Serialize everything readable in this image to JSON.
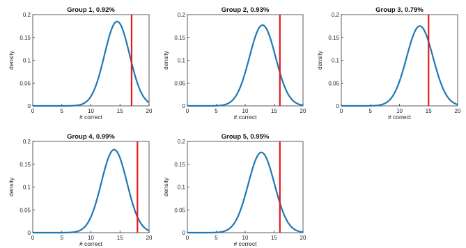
{
  "chart_data": [
    {
      "type": "line",
      "title": "Group 1, 0.92%",
      "xlabel": "# correct",
      "ylabel": "density",
      "xlim": [
        0,
        20
      ],
      "ylim": [
        0,
        0.2
      ],
      "xticks": [
        "0",
        "5",
        "10",
        "15",
        "20"
      ],
      "yticks": [
        "0",
        "0.05",
        "0.1",
        "0.15",
        "0.2"
      ],
      "series": [
        {
          "type": "normal-density",
          "mean": 14.5,
          "peak": 0.185,
          "color": "#1f77b4"
        }
      ],
      "vline": {
        "x": 17,
        "color": "#e41a1c"
      },
      "grid": false
    },
    {
      "type": "line",
      "title": "Group 2, 0.93%",
      "xlabel": "# correct",
      "ylabel": "density",
      "xlim": [
        0,
        20
      ],
      "ylim": [
        0,
        0.2
      ],
      "xticks": [
        "0",
        "5",
        "10",
        "15",
        "20"
      ],
      "yticks": [
        "0",
        "0.05",
        "0.1",
        "0.15",
        "0.2"
      ],
      "series": [
        {
          "type": "normal-density",
          "mean": 13.0,
          "peak": 0.177,
          "color": "#1f77b4"
        }
      ],
      "vline": {
        "x": 16,
        "color": "#e41a1c"
      },
      "grid": false
    },
    {
      "type": "line",
      "title": "Group 3, 0.79%",
      "xlabel": "# correct",
      "ylabel": "density",
      "xlim": [
        0,
        20
      ],
      "ylim": [
        0,
        0.2
      ],
      "xticks": [
        "0",
        "5",
        "10",
        "15",
        "20"
      ],
      "yticks": [
        "0",
        "0.05",
        "0.1",
        "0.15",
        "0.2"
      ],
      "series": [
        {
          "type": "normal-density",
          "mean": 13.5,
          "peak": 0.175,
          "color": "#1f77b4"
        }
      ],
      "vline": {
        "x": 15,
        "color": "#e41a1c"
      },
      "grid": false
    },
    {
      "type": "line",
      "title": "Group 4, 0.99%",
      "xlabel": "# correct",
      "ylabel": "density",
      "xlim": [
        0,
        20
      ],
      "ylim": [
        0,
        0.2
      ],
      "xticks": [
        "0",
        "5",
        "10",
        "15",
        "20"
      ],
      "yticks": [
        "0",
        "0.05",
        "0.1",
        "0.15",
        "0.2"
      ],
      "series": [
        {
          "type": "normal-density",
          "mean": 14.0,
          "peak": 0.182,
          "color": "#1f77b4"
        }
      ],
      "vline": {
        "x": 18,
        "color": "#e41a1c"
      },
      "grid": false
    },
    {
      "type": "line",
      "title": "Group 5, 0.95%",
      "xlabel": "# correct",
      "ylabel": "density",
      "xlim": [
        0,
        20
      ],
      "ylim": [
        0,
        0.2
      ],
      "xticks": [
        "0",
        "5",
        "10",
        "15",
        "20"
      ],
      "yticks": [
        "0",
        "0.05",
        "0.1",
        "0.15",
        "0.2"
      ],
      "series": [
        {
          "type": "normal-density",
          "mean": 12.8,
          "peak": 0.176,
          "color": "#1f77b4"
        }
      ],
      "vline": {
        "x": 16,
        "color": "#e41a1c"
      },
      "grid": false
    }
  ]
}
